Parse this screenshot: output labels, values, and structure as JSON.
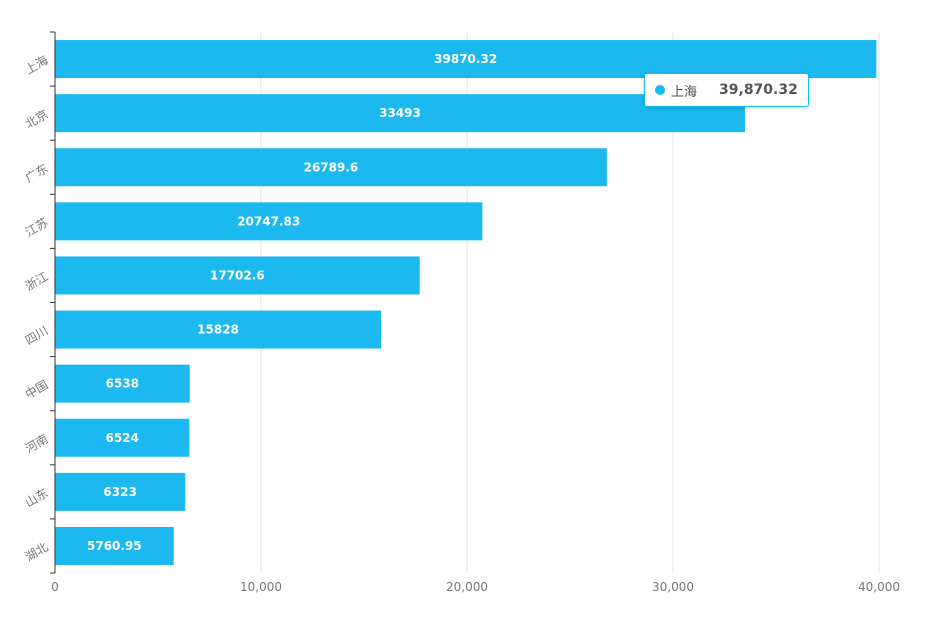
{
  "chart_data": {
    "type": "bar",
    "orientation": "horizontal",
    "categories": [
      "上海",
      "北京",
      "广东",
      "江苏",
      "浙江",
      "四川",
      "中国",
      "河南",
      "山东",
      "湖北"
    ],
    "values": [
      39870.32,
      33493,
      26789.6,
      20747.83,
      17702.6,
      15828,
      6538,
      6524,
      6323,
      5760.95
    ],
    "value_labels": [
      "39870.32",
      "33493",
      "26789.6",
      "20747.83",
      "17702.6",
      "15828",
      "6538",
      "6524",
      "6323",
      "5760.95"
    ],
    "xlim": [
      0,
      40000
    ],
    "x_ticks": [
      0,
      10000,
      20000,
      30000,
      40000
    ],
    "x_tick_labels": [
      "0",
      "10,000",
      "20,000",
      "30,000",
      "40,000"
    ],
    "grid": "vertical",
    "bar_color": "#1bb9f0",
    "title": "",
    "xlabel": "",
    "ylabel": ""
  },
  "tooltip": {
    "label": "上海",
    "value": "39,870.32",
    "color": "#1bb9f0"
  }
}
